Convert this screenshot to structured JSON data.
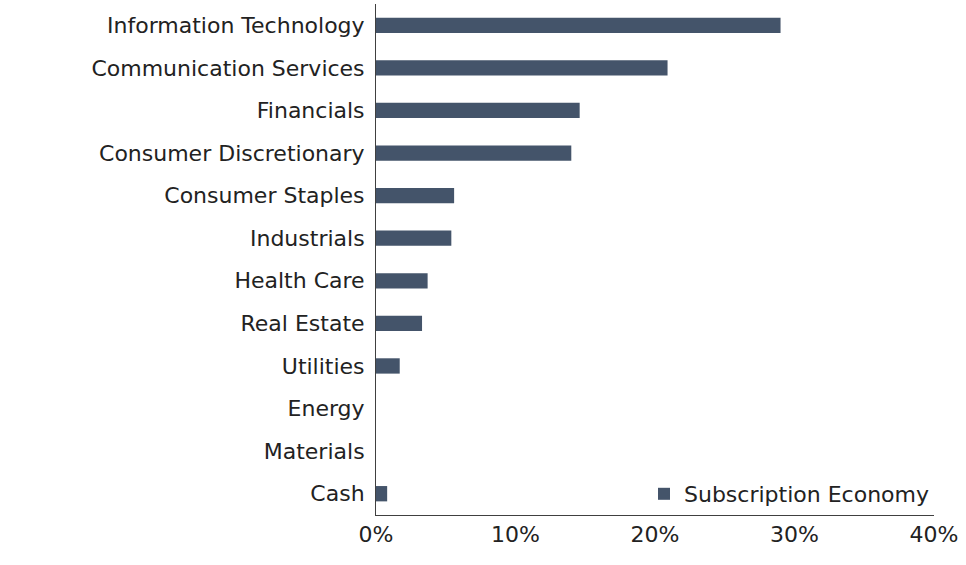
{
  "chart_data": {
    "type": "bar",
    "orientation": "horizontal",
    "categories": [
      "Information Technology",
      "Communication Services",
      "Financials",
      "Consumer Discretionary",
      "Consumer Staples",
      "Industrials",
      "Health Care",
      "Real Estate",
      "Utilities",
      "Energy",
      "Materials",
      "Cash"
    ],
    "series": [
      {
        "name": "Subscription Economy",
        "color": "#44546a",
        "values": [
          29.0,
          20.9,
          14.6,
          14.0,
          5.6,
          5.4,
          3.7,
          3.3,
          1.7,
          0,
          0,
          0.8
        ]
      }
    ],
    "xlim": [
      0,
      40
    ],
    "xticks": [
      {
        "value": 0,
        "label": "0%"
      },
      {
        "value": 10,
        "label": "10%"
      },
      {
        "value": 20,
        "label": "20%"
      },
      {
        "value": 30,
        "label": "30%"
      },
      {
        "value": 40,
        "label": "40%"
      }
    ],
    "grid": false,
    "legend": "lower right",
    "data_labels": false
  }
}
